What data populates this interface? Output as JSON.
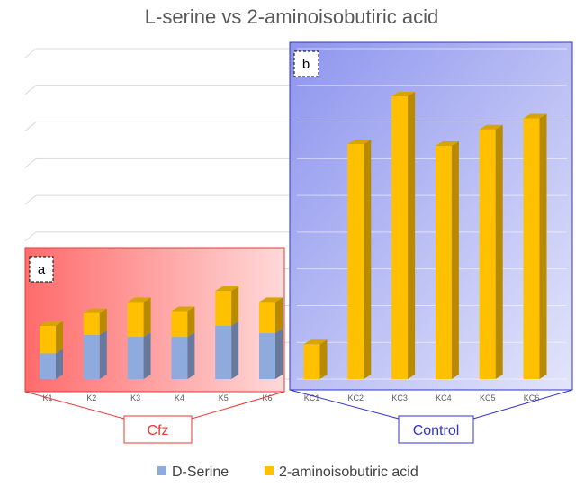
{
  "chart_data": {
    "type": "bar",
    "stacked": true,
    "title": "L-serine vs 2-aminoisobutiric acid",
    "xlabel": "",
    "ylabel": "",
    "ylim": [
      0,
      9
    ],
    "grid": true,
    "legend_position": "bottom",
    "categories": [
      "K1",
      "K2",
      "K3",
      "K4",
      "K5",
      "K6",
      "KC1",
      "KC2",
      "KC3",
      "KC4",
      "KC5",
      "KC6"
    ],
    "series": [
      {
        "name": "D-Serine",
        "color": "#8FAADC",
        "values": [
          0.7,
          1.2,
          1.15,
          1.15,
          1.45,
          1.25,
          0,
          0,
          0,
          0,
          0,
          0
        ]
      },
      {
        "name": "2-aminoisobutiric acid",
        "color": "#FFC000",
        "values": [
          0.75,
          0.6,
          0.95,
          0.7,
          0.95,
          0.85,
          0.95,
          6.4,
          7.7,
          6.35,
          6.8,
          7.1
        ]
      }
    ],
    "groups": [
      {
        "panel": "a",
        "label": "Cfz",
        "color": "#E53935"
      },
      {
        "panel": "b",
        "label": "Control",
        "color": "#3333CC"
      }
    ]
  }
}
